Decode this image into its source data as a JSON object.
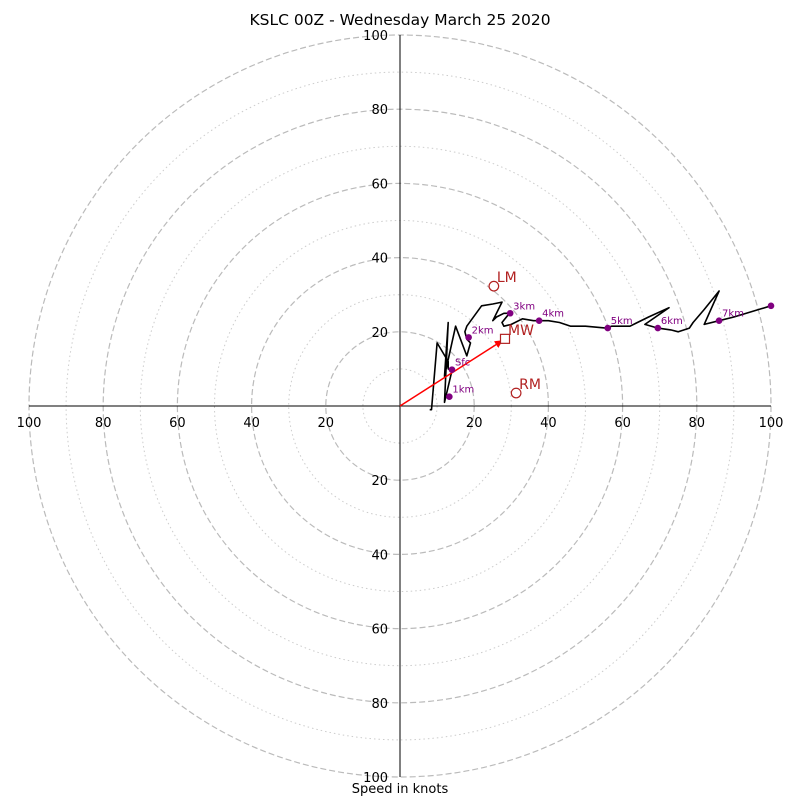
{
  "chart_data": {
    "type": "hodograph",
    "title": "KSLC 00Z - Wednesday March 25 2020",
    "xlabel": "Speed in knots",
    "range": [
      -100,
      100
    ],
    "major_rings": [
      20,
      40,
      60,
      80,
      100
    ],
    "minor_rings": [
      10,
      30,
      50,
      70,
      90
    ],
    "ticks": [
      100,
      80,
      60,
      40,
      20
    ],
    "colors": {
      "trace": "#000000",
      "height_markers": "#800080",
      "motion": "#b22222",
      "mean_wind_vector": "#ff0000",
      "major_ring": "#bbbbbb",
      "minor_ring": "#cccccc"
    },
    "trace": [
      [
        8,
        -1
      ],
      [
        8.5,
        -1
      ],
      [
        10,
        17
      ],
      [
        13,
        12
      ],
      [
        13,
        10
      ],
      [
        14,
        9.5
      ],
      [
        12,
        1
      ],
      [
        13,
        22.5
      ],
      [
        12,
        8
      ],
      [
        15,
        21.5
      ],
      [
        18,
        13.5
      ],
      [
        19,
        17
      ],
      [
        18,
        18
      ],
      [
        17.5,
        20
      ],
      [
        18,
        21.5
      ],
      [
        22,
        27
      ],
      [
        25,
        27.5
      ],
      [
        27.5,
        28
      ],
      [
        25,
        23
      ],
      [
        26,
        24
      ],
      [
        28,
        25
      ],
      [
        29.5,
        25
      ],
      [
        27.5,
        22.5
      ],
      [
        28,
        21.5
      ],
      [
        30,
        22
      ],
      [
        33,
        23.5
      ],
      [
        36,
        23
      ],
      [
        38,
        23
      ],
      [
        40,
        23
      ],
      [
        43,
        22.5
      ],
      [
        46,
        21.5
      ],
      [
        50,
        21.5
      ],
      [
        55.5,
        21
      ],
      [
        57,
        21.5
      ],
      [
        59,
        21.5
      ],
      [
        62,
        21.5
      ],
      [
        64,
        22.5
      ],
      [
        67,
        24
      ],
      [
        72.5,
        26.5
      ],
      [
        66,
        22
      ],
      [
        69.5,
        21
      ],
      [
        73,
        20.5
      ],
      [
        75,
        20
      ],
      [
        78,
        21
      ],
      [
        79,
        22.5
      ],
      [
        82,
        26
      ],
      [
        86,
        31
      ],
      [
        82,
        22
      ],
      [
        86,
        23
      ],
      [
        90,
        24
      ],
      [
        95,
        25.5
      ],
      [
        100,
        27
      ]
    ],
    "height_markers": [
      {
        "label": "1km",
        "u": 13.3,
        "v": 2.5
      },
      {
        "label": "Sfc",
        "u": 14,
        "v": 9.8
      },
      {
        "label": "2km",
        "u": 18.5,
        "v": 18.5
      },
      {
        "label": "3km",
        "u": 29.7,
        "v": 25
      },
      {
        "label": "4km",
        "u": 37.5,
        "v": 23
      },
      {
        "label": "5km",
        "u": 56,
        "v": 21
      },
      {
        "label": "6km",
        "u": 69.5,
        "v": 21
      },
      {
        "label": "7km",
        "u": 86,
        "v": 23
      },
      {
        "label": "",
        "u": 100,
        "v": 27
      }
    ],
    "storm_motion": [
      {
        "label": "LM",
        "u": 25.3,
        "v": 32.3,
        "marker": "circle"
      },
      {
        "label": "MW",
        "u": 28.3,
        "v": 18.1,
        "marker": "square"
      },
      {
        "label": "RM",
        "u": 31.3,
        "v": 3.5,
        "marker": "circle"
      }
    ],
    "mean_wind_vector": {
      "u": 28.3,
      "v": 18.1
    }
  }
}
